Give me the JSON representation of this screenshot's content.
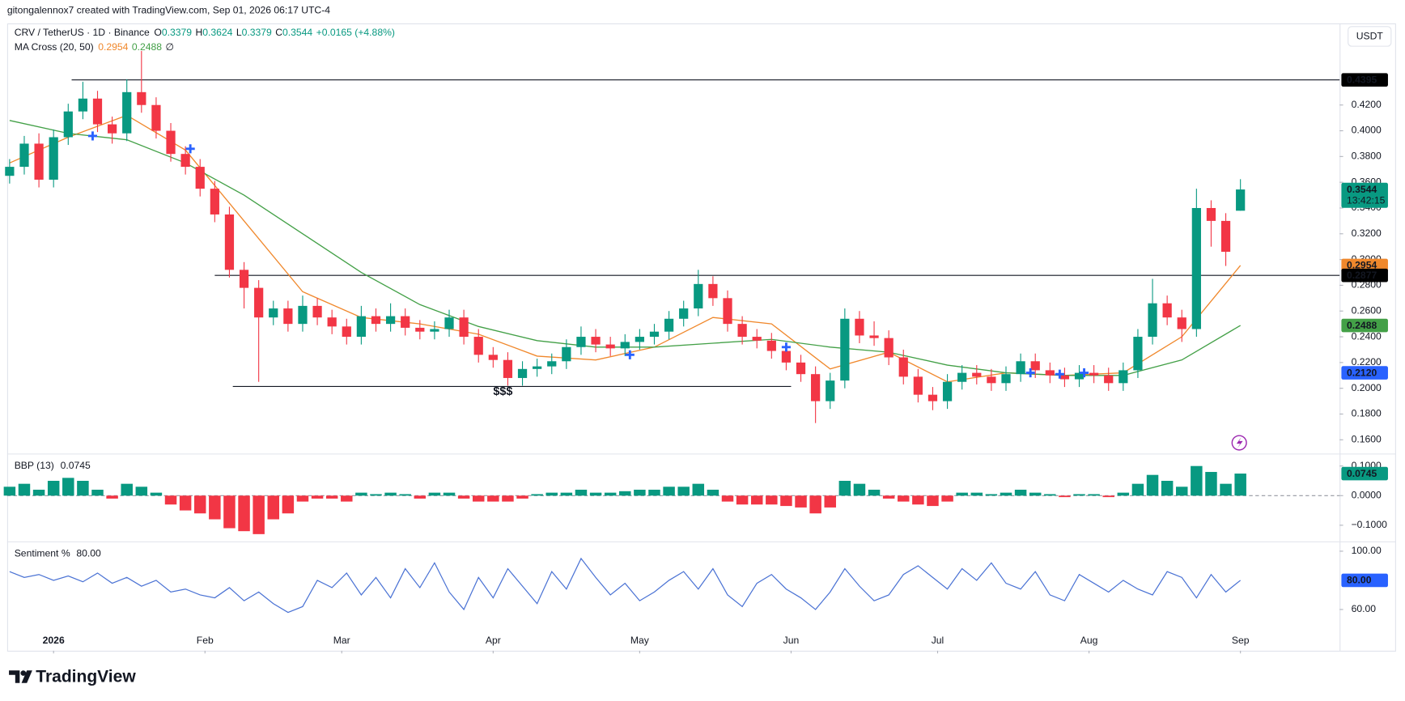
{
  "header": {
    "attribution": "gitongalennox7 created with TradingView.com, Sep 01, 2026 06:17 UTC-4",
    "currency": "USDT"
  },
  "footer": {
    "brand": "TradingView"
  },
  "chart_data": [
    {
      "type": "candlestick",
      "title": "CRV / TetherUS · 1D · Binance",
      "ohlc": [
        {
          "label": "O",
          "value": 0.3379
        },
        {
          "label": "H",
          "value": 0.3624
        },
        {
          "label": "L",
          "value": 0.3379
        },
        {
          "label": "C",
          "value": 0.3544
        }
      ],
      "change": "+0.0165 (+4.88%)",
      "ma_legend": {
        "title": "MA Cross (20, 50)",
        "values": [
          0.2954,
          0.2488
        ],
        "icon": "∅"
      },
      "up_color": "#089981",
      "down_color": "#f23645",
      "xlim": [
        -9.5,
        263.3
      ],
      "ylim": [
        0.15,
        0.482
      ],
      "yticks": [
        {
          "value": 0.16,
          "label": "0.1600"
        },
        {
          "value": 0.18,
          "label": "0.1800"
        },
        {
          "value": 0.2,
          "label": "0.2000"
        },
        {
          "value": 0.22,
          "label": "0.2200"
        },
        {
          "value": 0.24,
          "label": "0.2400"
        },
        {
          "value": 0.26,
          "label": "0.2600"
        },
        {
          "value": 0.28,
          "label": "0.2800"
        },
        {
          "value": 0.3,
          "label": "0.3000"
        },
        {
          "value": 0.32,
          "label": "0.3200"
        },
        {
          "value": 0.34,
          "label": "0.3400"
        },
        {
          "value": 0.36,
          "label": "0.3600"
        },
        {
          "value": 0.38,
          "label": "0.3800"
        },
        {
          "value": 0.4,
          "label": "0.4000"
        },
        {
          "value": 0.42,
          "label": "0.4200"
        }
      ],
      "x": [
        -9,
        -6,
        -3,
        0,
        3,
        6,
        9,
        12,
        15,
        18,
        21,
        24,
        27,
        30,
        33,
        36,
        39,
        42,
        45,
        48,
        51,
        54,
        57,
        60,
        63,
        66,
        69,
        72,
        75,
        78,
        81,
        84,
        87,
        90,
        93,
        96,
        99,
        102,
        105,
        108,
        111,
        114,
        117,
        120,
        123,
        126,
        129,
        132,
        135,
        138,
        141,
        144,
        147,
        150,
        153,
        156,
        159,
        162,
        165,
        168,
        171,
        174,
        177,
        180,
        183,
        186,
        189,
        192,
        195,
        198,
        201,
        204,
        207,
        210,
        213,
        216,
        219,
        222,
        225,
        228,
        231,
        234,
        237,
        240,
        243
      ],
      "open": [
        0.365,
        0.372,
        0.39,
        0.362,
        0.395,
        0.415,
        0.425,
        0.405,
        0.398,
        0.43,
        0.42,
        0.4,
        0.382,
        0.372,
        0.355,
        0.335,
        0.292,
        0.278,
        0.255,
        0.262,
        0.25,
        0.264,
        0.255,
        0.248,
        0.24,
        0.256,
        0.25,
        0.256,
        0.247,
        0.244,
        0.246,
        0.255,
        0.24,
        0.226,
        0.222,
        0.208,
        0.215,
        0.217,
        0.221,
        0.232,
        0.24,
        0.234,
        0.231,
        0.236,
        0.24,
        0.244,
        0.254,
        0.262,
        0.281,
        0.27,
        0.25,
        0.24,
        0.237,
        0.229,
        0.22,
        0.211,
        0.19,
        0.206,
        0.254,
        0.241,
        0.239,
        0.224,
        0.209,
        0.195,
        0.19,
        0.205,
        0.212,
        0.209,
        0.204,
        0.211,
        0.221,
        0.214,
        0.21,
        0.207,
        0.212,
        0.21,
        0.204,
        0.214,
        0.24,
        0.266,
        0.255,
        0.246,
        0.34,
        0.33,
        0.3379
      ],
      "high": [
        0.378,
        0.396,
        0.398,
        0.401,
        0.421,
        0.438,
        0.431,
        0.411,
        0.44,
        0.462,
        0.426,
        0.406,
        0.388,
        0.378,
        0.361,
        0.341,
        0.298,
        0.284,
        0.268,
        0.268,
        0.272,
        0.27,
        0.261,
        0.254,
        0.264,
        0.262,
        0.266,
        0.262,
        0.253,
        0.252,
        0.261,
        0.261,
        0.246,
        0.232,
        0.228,
        0.221,
        0.223,
        0.227,
        0.238,
        0.248,
        0.246,
        0.24,
        0.242,
        0.246,
        0.25,
        0.26,
        0.268,
        0.292,
        0.287,
        0.276,
        0.256,
        0.246,
        0.243,
        0.235,
        0.226,
        0.217,
        0.212,
        0.262,
        0.26,
        0.252,
        0.245,
        0.23,
        0.215,
        0.201,
        0.211,
        0.218,
        0.218,
        0.215,
        0.217,
        0.227,
        0.227,
        0.22,
        0.216,
        0.218,
        0.218,
        0.216,
        0.22,
        0.246,
        0.285,
        0.272,
        0.261,
        0.355,
        0.346,
        0.336,
        0.3624
      ],
      "low": [
        0.359,
        0.366,
        0.356,
        0.356,
        0.389,
        0.409,
        0.399,
        0.39,
        0.392,
        0.414,
        0.394,
        0.376,
        0.366,
        0.349,
        0.329,
        0.286,
        0.262,
        0.205,
        0.249,
        0.244,
        0.244,
        0.249,
        0.242,
        0.234,
        0.234,
        0.244,
        0.244,
        0.241,
        0.238,
        0.238,
        0.24,
        0.234,
        0.22,
        0.216,
        0.202,
        0.202,
        0.209,
        0.211,
        0.215,
        0.226,
        0.228,
        0.225,
        0.225,
        0.23,
        0.234,
        0.238,
        0.248,
        0.256,
        0.264,
        0.244,
        0.234,
        0.231,
        0.223,
        0.214,
        0.205,
        0.173,
        0.184,
        0.2,
        0.235,
        0.233,
        0.218,
        0.203,
        0.189,
        0.183,
        0.184,
        0.199,
        0.203,
        0.198,
        0.198,
        0.205,
        0.208,
        0.204,
        0.201,
        0.201,
        0.204,
        0.198,
        0.198,
        0.208,
        0.234,
        0.249,
        0.236,
        0.24,
        0.31,
        0.295,
        0.3379
      ],
      "close": [
        0.372,
        0.39,
        0.362,
        0.395,
        0.415,
        0.425,
        0.405,
        0.398,
        0.43,
        0.42,
        0.4,
        0.382,
        0.372,
        0.355,
        0.335,
        0.292,
        0.278,
        0.255,
        0.262,
        0.25,
        0.264,
        0.255,
        0.248,
        0.24,
        0.256,
        0.25,
        0.256,
        0.247,
        0.244,
        0.246,
        0.255,
        0.24,
        0.226,
        0.222,
        0.208,
        0.215,
        0.217,
        0.221,
        0.232,
        0.24,
        0.234,
        0.231,
        0.236,
        0.24,
        0.244,
        0.254,
        0.262,
        0.281,
        0.27,
        0.25,
        0.24,
        0.237,
        0.229,
        0.22,
        0.211,
        0.19,
        0.206,
        0.254,
        0.241,
        0.239,
        0.224,
        0.209,
        0.195,
        0.19,
        0.205,
        0.212,
        0.209,
        0.204,
        0.211,
        0.221,
        0.214,
        0.21,
        0.207,
        0.212,
        0.21,
        0.204,
        0.214,
        0.24,
        0.266,
        0.255,
        0.246,
        0.34,
        0.33,
        0.306,
        0.3544
      ],
      "series": [
        {
          "color": "#f0882c",
          "x": [
            -9,
            3,
            15,
            27,
            39,
            51,
            63,
            75,
            87,
            99,
            111,
            123,
            135,
            147,
            159,
            171,
            183,
            195,
            207,
            219,
            231,
            243
          ],
          "values": [
            0.375,
            0.395,
            0.412,
            0.385,
            0.33,
            0.275,
            0.255,
            0.25,
            0.242,
            0.225,
            0.222,
            0.232,
            0.255,
            0.25,
            0.215,
            0.228,
            0.205,
            0.212,
            0.21,
            0.212,
            0.24,
            0.2954
          ]
        },
        {
          "color": "#43a047",
          "x": [
            -9,
            3,
            15,
            27,
            39,
            51,
            63,
            75,
            87,
            99,
            111,
            123,
            135,
            147,
            159,
            171,
            183,
            195,
            207,
            219,
            231,
            243
          ],
          "values": [
            0.408,
            0.398,
            0.393,
            0.375,
            0.35,
            0.32,
            0.29,
            0.265,
            0.248,
            0.237,
            0.232,
            0.232,
            0.235,
            0.238,
            0.232,
            0.228,
            0.218,
            0.212,
            0.21,
            0.21,
            0.222,
            0.2488
          ]
        }
      ],
      "markers": {
        "color": "#2962ff",
        "x": [
          8,
          28,
          118,
          150,
          200,
          206,
          211
        ],
        "values": [
          0.396,
          0.386,
          0.226,
          0.232,
          0.212,
          0.211,
          0.212
        ]
      },
      "levels": [
        {
          "value": 0.4395,
          "from": 3.7
        },
        {
          "value": 0.2877,
          "from": 33
        },
        {
          "value": 0.2014,
          "from": 36.7,
          "to": 151
        }
      ],
      "annotations": [
        {
          "text": "$$$",
          "x": 92,
          "y": 0.197,
          "color": "#2962ff"
        }
      ],
      "price_tags": [
        {
          "value": 0.4395,
          "label": "0.4395",
          "color": "#000000"
        },
        {
          "value": 0.3544,
          "label": "0.3544",
          "color": "#089981",
          "countdown": "13:42:15"
        },
        {
          "value": 0.2954,
          "label": "0.2954",
          "color": "#f0882c"
        },
        {
          "value": 0.2877,
          "label": "0.2877",
          "color": "#000000"
        },
        {
          "value": 0.2488,
          "label": "0.2488",
          "color": "#43a047"
        },
        {
          "value": 0.212,
          "label": "0.2120",
          "color": "#2962ff"
        }
      ]
    },
    {
      "type": "bar",
      "title": "BBP (13)",
      "legend_value": 0.0745,
      "legend_color": "#089981",
      "up_color": "#089981",
      "down_color": "#f23645",
      "baseline": 0,
      "xlim": [
        -9.5,
        263.3
      ],
      "ylim": [
        -0.1515,
        0.136
      ],
      "yticks": [
        {
          "value": -0.1,
          "label": "−0.1000"
        },
        {
          "value": 0,
          "label": "0.0000"
        },
        {
          "value": 0.1,
          "label": "0.1000"
        }
      ],
      "x": [
        -9,
        -6,
        -3,
        0,
        3,
        6,
        9,
        12,
        15,
        18,
        21,
        24,
        27,
        30,
        33,
        36,
        39,
        42,
        45,
        48,
        51,
        54,
        57,
        60,
        63,
        66,
        69,
        72,
        75,
        78,
        81,
        84,
        87,
        90,
        93,
        96,
        99,
        102,
        105,
        108,
        111,
        114,
        117,
        120,
        123,
        126,
        129,
        132,
        135,
        138,
        141,
        144,
        147,
        150,
        153,
        156,
        159,
        162,
        165,
        168,
        171,
        174,
        177,
        180,
        183,
        186,
        189,
        192,
        195,
        198,
        201,
        204,
        207,
        210,
        213,
        216,
        219,
        222,
        225,
        228,
        231,
        234,
        237,
        240,
        243
      ],
      "values": [
        0.03,
        0.04,
        0.02,
        0.05,
        0.06,
        0.05,
        0.02,
        -0.01,
        0.04,
        0.03,
        0.01,
        -0.03,
        -0.05,
        -0.06,
        -0.08,
        -0.11,
        -0.12,
        -0.13,
        -0.08,
        -0.06,
        -0.02,
        -0.01,
        -0.01,
        -0.02,
        0.01,
        0.005,
        0.01,
        0.005,
        -0.01,
        0.01,
        0.01,
        -0.01,
        -0.02,
        -0.02,
        -0.02,
        -0.01,
        0.005,
        0.01,
        0.01,
        0.02,
        0.01,
        0.01,
        0.015,
        0.02,
        0.02,
        0.03,
        0.03,
        0.04,
        0.02,
        -0.02,
        -0.03,
        -0.03,
        -0.03,
        -0.035,
        -0.04,
        -0.06,
        -0.04,
        0.05,
        0.04,
        0.02,
        -0.01,
        -0.02,
        -0.03,
        -0.035,
        -0.02,
        0.01,
        0.01,
        0.005,
        0.01,
        0.02,
        0.01,
        0.005,
        -0.005,
        0.005,
        0.005,
        -0.005,
        0.01,
        0.04,
        0.07,
        0.05,
        0.03,
        0.1,
        0.08,
        0.04,
        0.0745
      ],
      "price_tags": [
        {
          "value": 0.0745,
          "label": "0.0745",
          "color": "#089981"
        }
      ]
    },
    {
      "type": "line",
      "title": "Sentiment %",
      "legend_value": {
        "value": 80,
        "label": "80.00"
      },
      "legend_color": "#2962ff",
      "color": "#4a72d4",
      "xlim": [
        -9.5,
        263.3
      ],
      "ylim": [
        31.7,
        105.5
      ],
      "yticks": [
        {
          "value": 60,
          "label": "60.00"
        },
        {
          "value": 100,
          "label": "100.00"
        }
      ],
      "xticks": [
        {
          "value": 0,
          "label": "2026"
        },
        {
          "value": 31,
          "label": "Feb"
        },
        {
          "value": 59,
          "label": "Mar"
        },
        {
          "value": 90,
          "label": "Apr"
        },
        {
          "value": 120,
          "label": "May"
        },
        {
          "value": 151,
          "label": "Jun"
        },
        {
          "value": 181,
          "label": "Jul"
        },
        {
          "value": 212,
          "label": "Aug"
        },
        {
          "value": 243,
          "label": "Sep"
        }
      ],
      "x": [
        -9,
        -6,
        -3,
        0,
        3,
        6,
        9,
        12,
        15,
        18,
        21,
        24,
        27,
        30,
        33,
        36,
        39,
        42,
        45,
        48,
        51,
        54,
        57,
        60,
        63,
        66,
        69,
        72,
        75,
        78,
        81,
        84,
        87,
        90,
        93,
        96,
        99,
        102,
        105,
        108,
        111,
        114,
        117,
        120,
        123,
        126,
        129,
        132,
        135,
        138,
        141,
        144,
        147,
        150,
        153,
        156,
        159,
        162,
        165,
        168,
        171,
        174,
        177,
        180,
        183,
        186,
        189,
        192,
        195,
        198,
        201,
        204,
        207,
        210,
        213,
        216,
        219,
        222,
        225,
        228,
        231,
        234,
        237,
        240,
        243
      ],
      "values": [
        86,
        82,
        84,
        80,
        83,
        79,
        85,
        78,
        82,
        76,
        80,
        72,
        74,
        70,
        68,
        75,
        66,
        72,
        64,
        58,
        62,
        80,
        75,
        85,
        70,
        82,
        68,
        88,
        75,
        92,
        72,
        60,
        82,
        68,
        88,
        76,
        64,
        86,
        74,
        95,
        82,
        70,
        78,
        66,
        72,
        80,
        86,
        74,
        88,
        70,
        62,
        78,
        84,
        74,
        68,
        60,
        72,
        88,
        76,
        66,
        70,
        84,
        90,
        82,
        74,
        88,
        80,
        92,
        78,
        74,
        86,
        70,
        66,
        84,
        78,
        72,
        80,
        74,
        70,
        86,
        82,
        68,
        84,
        72,
        80
      ],
      "price_tags": [
        {
          "value": 80,
          "label": "80.00",
          "color": "#2962ff"
        }
      ]
    }
  ]
}
